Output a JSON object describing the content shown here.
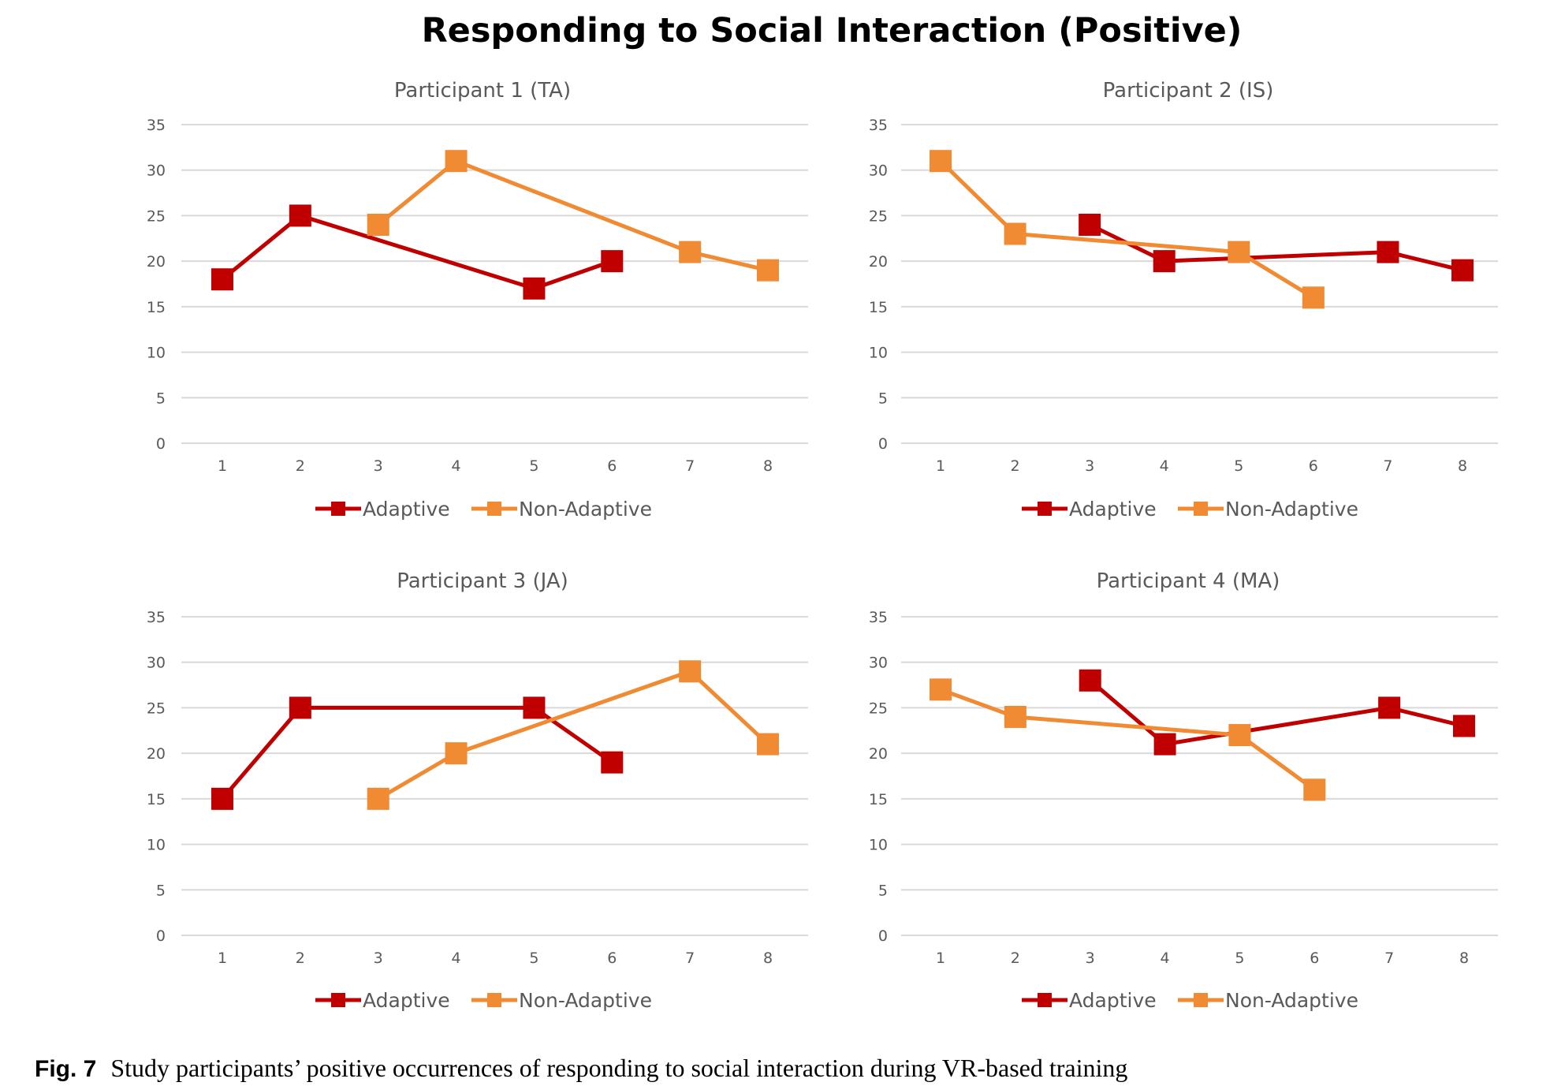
{
  "title": "Responding to Social Interaction (Positive)",
  "caption": {
    "label": "Fig. 7",
    "text": "Study participants’ positive occurrences of responding to social interaction during VR-based training"
  },
  "colors": {
    "adaptive": "#C00000",
    "non_adaptive": "#F08A33",
    "grid": "#d9d9d9",
    "tick_text": "#595959",
    "panel_title": "#595959"
  },
  "chart_data": [
    {
      "type": "line",
      "title": "Participant 1 (TA)",
      "x": [
        1,
        2,
        3,
        4,
        5,
        6,
        7,
        8
      ],
      "ylim": [
        0,
        35
      ],
      "yticks": [
        0,
        5,
        10,
        15,
        20,
        25,
        30,
        35
      ],
      "grid": true,
      "legend": "bottom-center",
      "series": [
        {
          "name": "Adaptive",
          "color": "#C00000",
          "x": [
            1,
            2,
            5,
            6
          ],
          "values": [
            18,
            25,
            17,
            20
          ]
        },
        {
          "name": "Non-Adaptive",
          "color": "#F08A33",
          "x": [
            3,
            4,
            7,
            8
          ],
          "values": [
            24,
            31,
            21,
            19
          ]
        }
      ]
    },
    {
      "type": "line",
      "title": "Participant 2 (IS)",
      "x": [
        1,
        2,
        3,
        4,
        5,
        6,
        7,
        8
      ],
      "ylim": [
        0,
        35
      ],
      "yticks": [
        0,
        5,
        10,
        15,
        20,
        25,
        30,
        35
      ],
      "grid": true,
      "legend": "bottom-center",
      "series": [
        {
          "name": "Adaptive",
          "color": "#C00000",
          "x": [
            3,
            4,
            7,
            8
          ],
          "values": [
            24,
            20,
            21,
            19
          ]
        },
        {
          "name": "Non-Adaptive",
          "color": "#F08A33",
          "x": [
            1,
            2,
            5,
            6
          ],
          "values": [
            31,
            23,
            21,
            16
          ]
        }
      ]
    },
    {
      "type": "line",
      "title": "Participant 3 (JA)",
      "x": [
        1,
        2,
        3,
        4,
        5,
        6,
        7,
        8
      ],
      "ylim": [
        0,
        35
      ],
      "yticks": [
        0,
        5,
        10,
        15,
        20,
        25,
        30,
        35
      ],
      "grid": true,
      "legend": "bottom-center",
      "series": [
        {
          "name": "Adaptive",
          "color": "#C00000",
          "x": [
            1,
            2,
            5,
            6
          ],
          "values": [
            15,
            25,
            25,
            19
          ]
        },
        {
          "name": "Non-Adaptive",
          "color": "#F08A33",
          "x": [
            3,
            4,
            7,
            8
          ],
          "values": [
            15,
            20,
            29,
            21
          ]
        }
      ]
    },
    {
      "type": "line",
      "title": "Participant 4 (MA)",
      "x": [
        1,
        2,
        3,
        4,
        5,
        6,
        7,
        8
      ],
      "ylim": [
        0,
        35
      ],
      "yticks": [
        0,
        5,
        10,
        15,
        20,
        25,
        30,
        35
      ],
      "grid": true,
      "legend": "bottom-center",
      "series": [
        {
          "name": "Adaptive",
          "color": "#C00000",
          "x": [
            3,
            4,
            7,
            8
          ],
          "values": [
            28,
            21,
            25,
            23
          ]
        },
        {
          "name": "Non-Adaptive",
          "color": "#F08A33",
          "x": [
            1,
            2,
            5,
            6
          ],
          "values": [
            27,
            24,
            22,
            16
          ]
        }
      ]
    }
  ]
}
